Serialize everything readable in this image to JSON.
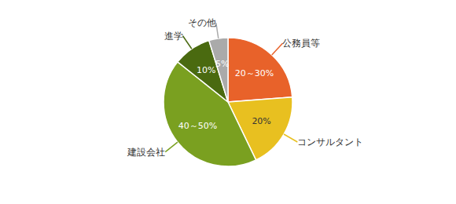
{
  "chart_data": {
    "type": "pie",
    "categories": [
      "公務員等",
      "コンサルタント",
      "建設会社",
      "進学",
      "その他"
    ],
    "values": [
      25,
      20,
      45,
      10,
      5
    ],
    "value_labels": [
      "20～30%",
      "20%",
      "40～50%",
      "10%",
      "5%"
    ],
    "colors": [
      "#E8622A",
      "#E8C020",
      "#7AA020",
      "#4A6A10",
      "#AAAAAA"
    ],
    "data_labels": true
  }
}
